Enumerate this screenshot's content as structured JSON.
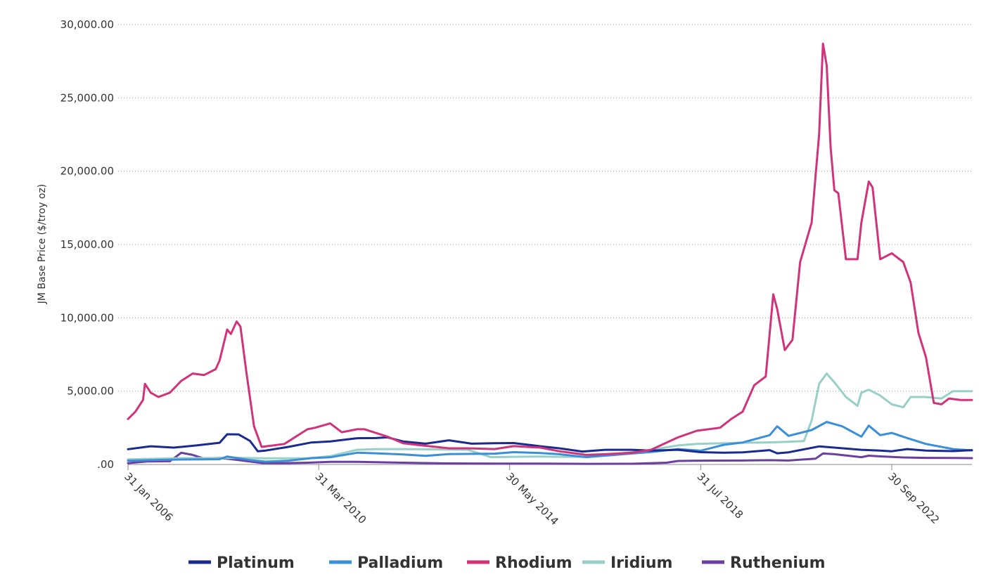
{
  "chart_data": {
    "type": "line",
    "ylabel": "JM Base Price ($/troy oz)",
    "xlabel": "",
    "ylim": [
      0,
      30000
    ],
    "xlim": [
      "2006-01-31",
      "2024-06-30"
    ],
    "yticks": [
      0,
      5000,
      10000,
      15000,
      20000,
      25000,
      30000
    ],
    "ytick_labels": [
      ".00",
      "5,000.00",
      "10,000.00",
      "15,000.00",
      "20,000.00",
      "25,000.00",
      "30,000.00"
    ],
    "xticks": [
      "2006-01-31",
      "2010-03-31",
      "2014-05-30",
      "2018-07-31",
      "2022-09-30"
    ],
    "xtick_labels": [
      "31 Jan 2006",
      "31 Mar 2010",
      "30 May 2014",
      "31 Jul 2018",
      "30 Sep 2022"
    ],
    "grid": "horizontal dotted",
    "legend_position": "bottom",
    "series": [
      {
        "name": "Platinum",
        "color": "#1a2a8f",
        "points": [
          [
            "2006-01-31",
            1040
          ],
          [
            "2006-07-31",
            1240
          ],
          [
            "2007-01-31",
            1150
          ],
          [
            "2007-07-31",
            1300
          ],
          [
            "2008-01-31",
            1480
          ],
          [
            "2008-03-31",
            2060
          ],
          [
            "2008-06-30",
            2050
          ],
          [
            "2008-09-30",
            1600
          ],
          [
            "2008-11-30",
            900
          ],
          [
            "2009-01-31",
            950
          ],
          [
            "2009-07-31",
            1200
          ],
          [
            "2010-01-31",
            1500
          ],
          [
            "2010-06-30",
            1570
          ],
          [
            "2011-01-31",
            1790
          ],
          [
            "2011-06-30",
            1800
          ],
          [
            "2011-09-30",
            1850
          ],
          [
            "2012-01-31",
            1570
          ],
          [
            "2012-07-31",
            1420
          ],
          [
            "2013-01-31",
            1650
          ],
          [
            "2013-07-31",
            1420
          ],
          [
            "2014-01-31",
            1450
          ],
          [
            "2014-06-30",
            1460
          ],
          [
            "2015-01-31",
            1240
          ],
          [
            "2015-06-30",
            1100
          ],
          [
            "2015-12-31",
            880
          ],
          [
            "2016-06-30",
            1000
          ],
          [
            "2017-01-31",
            1000
          ],
          [
            "2017-06-30",
            950
          ],
          [
            "2018-01-31",
            1000
          ],
          [
            "2018-07-31",
            840
          ],
          [
            "2019-01-31",
            800
          ],
          [
            "2019-06-30",
            830
          ],
          [
            "2020-01-31",
            980
          ],
          [
            "2020-03-31",
            760
          ],
          [
            "2020-06-30",
            830
          ],
          [
            "2021-02-28",
            1230
          ],
          [
            "2021-06-30",
            1150
          ],
          [
            "2022-01-31",
            1000
          ],
          [
            "2022-06-30",
            950
          ],
          [
            "2022-09-30",
            900
          ],
          [
            "2023-01-31",
            1050
          ],
          [
            "2023-06-30",
            950
          ],
          [
            "2024-01-31",
            910
          ],
          [
            "2024-06-30",
            980
          ]
        ]
      },
      {
        "name": "Palladium",
        "color": "#3b8fd9",
        "points": [
          [
            "2006-01-31",
            260
          ],
          [
            "2007-01-31",
            330
          ],
          [
            "2008-01-31",
            360
          ],
          [
            "2008-03-31",
            540
          ],
          [
            "2008-09-30",
            300
          ],
          [
            "2009-01-31",
            190
          ],
          [
            "2009-07-31",
            260
          ],
          [
            "2010-01-31",
            430
          ],
          [
            "2010-06-30",
            490
          ],
          [
            "2011-01-31",
            800
          ],
          [
            "2011-06-30",
            760
          ],
          [
            "2012-01-31",
            680
          ],
          [
            "2012-07-31",
            590
          ],
          [
            "2013-01-31",
            710
          ],
          [
            "2014-01-31",
            740
          ],
          [
            "2014-06-30",
            840
          ],
          [
            "2015-01-31",
            780
          ],
          [
            "2015-06-30",
            700
          ],
          [
            "2016-01-31",
            500
          ],
          [
            "2017-01-31",
            750
          ],
          [
            "2017-06-30",
            850
          ],
          [
            "2018-01-31",
            1050
          ],
          [
            "2018-07-31",
            940
          ],
          [
            "2019-01-31",
            1340
          ],
          [
            "2019-06-30",
            1500
          ],
          [
            "2020-01-31",
            2000
          ],
          [
            "2020-03-31",
            2600
          ],
          [
            "2020-06-30",
            1950
          ],
          [
            "2020-12-31",
            2350
          ],
          [
            "2021-04-30",
            2900
          ],
          [
            "2021-08-31",
            2600
          ],
          [
            "2022-01-31",
            1900
          ],
          [
            "2022-03-31",
            2650
          ],
          [
            "2022-06-30",
            2000
          ],
          [
            "2022-09-30",
            2150
          ],
          [
            "2023-01-31",
            1800
          ],
          [
            "2023-06-30",
            1400
          ],
          [
            "2024-01-31",
            1050
          ],
          [
            "2024-06-30",
            960
          ]
        ]
      },
      {
        "name": "Rhodium",
        "color": "#d1337a",
        "points": [
          [
            "2006-01-31",
            3100
          ],
          [
            "2006-03-31",
            3600
          ],
          [
            "2006-05-31",
            4400
          ],
          [
            "2006-06-15",
            5500
          ],
          [
            "2006-07-31",
            4900
          ],
          [
            "2006-09-30",
            4600
          ],
          [
            "2006-12-31",
            4900
          ],
          [
            "2007-03-31",
            5700
          ],
          [
            "2007-06-30",
            6200
          ],
          [
            "2007-09-30",
            6100
          ],
          [
            "2007-12-31",
            6500
          ],
          [
            "2008-01-31",
            7100
          ],
          [
            "2008-03-31",
            9200
          ],
          [
            "2008-04-30",
            8900
          ],
          [
            "2008-06-15",
            9750
          ],
          [
            "2008-07-15",
            9400
          ],
          [
            "2008-08-31",
            6300
          ],
          [
            "2008-10-31",
            2600
          ],
          [
            "2008-12-31",
            1200
          ],
          [
            "2009-06-30",
            1400
          ],
          [
            "2009-12-31",
            2400
          ],
          [
            "2010-02-28",
            2500
          ],
          [
            "2010-06-30",
            2800
          ],
          [
            "2010-09-30",
            2200
          ],
          [
            "2011-01-31",
            2400
          ],
          [
            "2011-03-31",
            2400
          ],
          [
            "2011-09-30",
            1900
          ],
          [
            "2012-01-31",
            1450
          ],
          [
            "2012-06-30",
            1300
          ],
          [
            "2013-01-31",
            1100
          ],
          [
            "2013-06-30",
            1100
          ],
          [
            "2014-01-31",
            1050
          ],
          [
            "2014-06-30",
            1250
          ],
          [
            "2015-01-31",
            1150
          ],
          [
            "2015-06-30",
            900
          ],
          [
            "2016-01-31",
            650
          ],
          [
            "2016-06-30",
            700
          ],
          [
            "2017-01-31",
            800
          ],
          [
            "2017-06-30",
            1000
          ],
          [
            "2018-01-31",
            1850
          ],
          [
            "2018-06-30",
            2300
          ],
          [
            "2018-12-31",
            2500
          ],
          [
            "2019-03-31",
            3100
          ],
          [
            "2019-06-30",
            3600
          ],
          [
            "2019-09-30",
            5400
          ],
          [
            "2019-12-31",
            6000
          ],
          [
            "2020-02-29",
            11600
          ],
          [
            "2020-03-31",
            10600
          ],
          [
            "2020-05-31",
            7800
          ],
          [
            "2020-07-31",
            8500
          ],
          [
            "2020-09-30",
            13800
          ],
          [
            "2020-12-31",
            16500
          ],
          [
            "2021-01-31",
            19700
          ],
          [
            "2021-02-28",
            22500
          ],
          [
            "2021-03-31",
            28700
          ],
          [
            "2021-04-30",
            27200
          ],
          [
            "2021-05-31",
            21600
          ],
          [
            "2021-06-30",
            18700
          ],
          [
            "2021-07-31",
            18500
          ],
          [
            "2021-09-30",
            14000
          ],
          [
            "2021-12-31",
            14000
          ],
          [
            "2022-01-31",
            16500
          ],
          [
            "2022-03-31",
            19300
          ],
          [
            "2022-04-30",
            18900
          ],
          [
            "2022-06-30",
            14000
          ],
          [
            "2022-09-30",
            14400
          ],
          [
            "2022-12-31",
            13800
          ],
          [
            "2023-02-28",
            12400
          ],
          [
            "2023-04-30",
            9000
          ],
          [
            "2023-06-30",
            7300
          ],
          [
            "2023-08-31",
            4200
          ],
          [
            "2023-10-31",
            4100
          ],
          [
            "2023-12-31",
            4500
          ],
          [
            "2024-03-31",
            4400
          ],
          [
            "2024-06-30",
            4400
          ]
        ]
      },
      {
        "name": "Iridium",
        "color": "#98d0c8",
        "points": [
          [
            "2006-01-31",
            350
          ],
          [
            "2007-01-31",
            420
          ],
          [
            "2008-01-31",
            440
          ],
          [
            "2008-06-30",
            450
          ],
          [
            "2009-01-31",
            420
          ],
          [
            "2009-12-31",
            420
          ],
          [
            "2010-06-30",
            560
          ],
          [
            "2011-01-31",
            1000
          ],
          [
            "2011-06-30",
            1050
          ],
          [
            "2012-01-31",
            1050
          ],
          [
            "2013-06-30",
            1000
          ],
          [
            "2013-12-31",
            500
          ],
          [
            "2014-06-30",
            520
          ],
          [
            "2015-01-31",
            540
          ],
          [
            "2015-06-30",
            520
          ],
          [
            "2016-01-31",
            520
          ],
          [
            "2016-06-30",
            620
          ],
          [
            "2017-01-31",
            850
          ],
          [
            "2017-06-30",
            1000
          ],
          [
            "2018-01-31",
            1300
          ],
          [
            "2018-06-30",
            1400
          ],
          [
            "2019-01-31",
            1450
          ],
          [
            "2019-06-30",
            1480
          ],
          [
            "2019-12-31",
            1500
          ],
          [
            "2020-06-30",
            1550
          ],
          [
            "2020-10-31",
            1600
          ],
          [
            "2020-12-31",
            3000
          ],
          [
            "2021-02-28",
            5500
          ],
          [
            "2021-04-30",
            6200
          ],
          [
            "2021-06-30",
            5600
          ],
          [
            "2021-09-30",
            4600
          ],
          [
            "2021-12-31",
            4000
          ],
          [
            "2022-01-31",
            4900
          ],
          [
            "2022-03-31",
            5100
          ],
          [
            "2022-06-30",
            4700
          ],
          [
            "2022-09-30",
            4100
          ],
          [
            "2022-12-31",
            3900
          ],
          [
            "2023-02-28",
            4600
          ],
          [
            "2023-06-30",
            4600
          ],
          [
            "2023-10-31",
            4500
          ],
          [
            "2024-01-31",
            5000
          ],
          [
            "2024-06-30",
            5000
          ]
        ]
      },
      {
        "name": "Ruthenium",
        "color": "#6b3fa0",
        "points": [
          [
            "2006-01-31",
            90
          ],
          [
            "2006-06-30",
            200
          ],
          [
            "2006-12-31",
            220
          ],
          [
            "2007-03-31",
            800
          ],
          [
            "2007-06-30",
            650
          ],
          [
            "2007-09-30",
            400
          ],
          [
            "2008-01-31",
            450
          ],
          [
            "2008-06-30",
            300
          ],
          [
            "2008-12-31",
            100
          ],
          [
            "2009-06-30",
            90
          ],
          [
            "2009-12-31",
            120
          ],
          [
            "2010-06-30",
            180
          ],
          [
            "2011-01-31",
            180
          ],
          [
            "2011-06-30",
            160
          ],
          [
            "2012-01-31",
            120
          ],
          [
            "2013-01-31",
            70
          ],
          [
            "2014-01-31",
            60
          ],
          [
            "2015-01-31",
            60
          ],
          [
            "2016-01-31",
            45
          ],
          [
            "2017-01-31",
            50
          ],
          [
            "2017-10-31",
            120
          ],
          [
            "2018-01-31",
            240
          ],
          [
            "2018-06-30",
            260
          ],
          [
            "2019-06-30",
            270
          ],
          [
            "2020-01-31",
            290
          ],
          [
            "2020-06-30",
            270
          ],
          [
            "2021-01-31",
            400
          ],
          [
            "2021-03-31",
            750
          ],
          [
            "2021-06-30",
            700
          ],
          [
            "2022-01-31",
            500
          ],
          [
            "2022-03-31",
            600
          ],
          [
            "2022-06-30",
            550
          ],
          [
            "2022-12-31",
            480
          ],
          [
            "2023-06-30",
            450
          ],
          [
            "2024-01-31",
            440
          ],
          [
            "2024-06-30",
            430
          ]
        ]
      }
    ]
  }
}
